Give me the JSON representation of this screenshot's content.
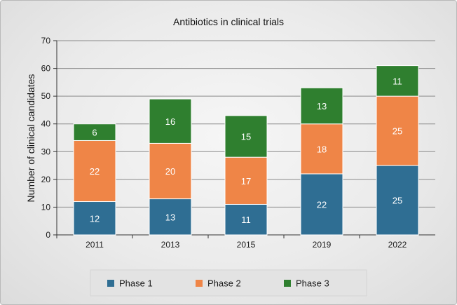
{
  "chart_data": {
    "type": "bar",
    "stacked": true,
    "title": "Antibiotics in clinical trials",
    "xlabel": "",
    "ylabel": "Number of clinical candidates",
    "ylim": [
      0,
      70
    ],
    "yticks": [
      0,
      10,
      20,
      30,
      40,
      50,
      60,
      70
    ],
    "grid": true,
    "legend_position": "bottom",
    "categories": [
      "2011",
      "2013",
      "2015",
      "2019",
      "2022"
    ],
    "series": [
      {
        "name": "Phase 1",
        "color": "#2f6e93",
        "values": [
          12,
          13,
          11,
          22,
          25
        ]
      },
      {
        "name": "Phase 2",
        "color": "#ef8547",
        "values": [
          22,
          20,
          17,
          18,
          25
        ]
      },
      {
        "name": "Phase 3",
        "color": "#2f7f2f",
        "values": [
          6,
          16,
          15,
          13,
          11
        ]
      }
    ]
  }
}
